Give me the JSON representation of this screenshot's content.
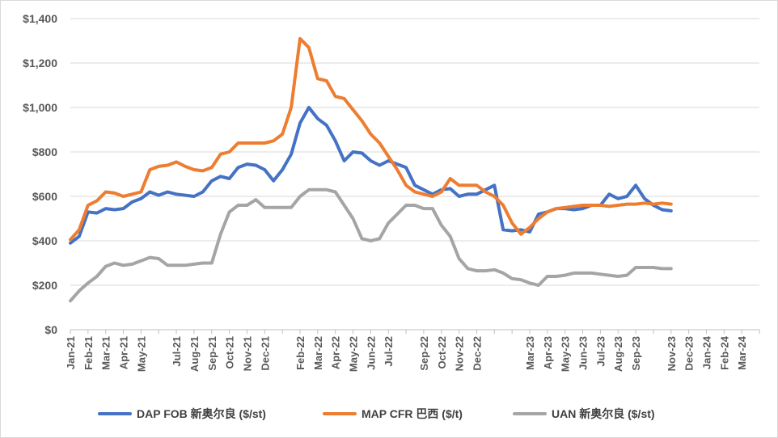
{
  "chart_data": {
    "type": "line",
    "title": "",
    "xlabel": "",
    "ylabel": "",
    "ylim": [
      0,
      1400
    ],
    "y_ticks": [
      0,
      200,
      400,
      600,
      800,
      1000,
      1200,
      1400
    ],
    "y_tick_labels": [
      "$0",
      "$200",
      "$400",
      "$600",
      "$800",
      "$1,000",
      "$1,200",
      "$1,400"
    ],
    "x_categories": [
      "Jan-21",
      "Feb-21",
      "Mar-21",
      "Apr-21",
      "May-21",
      "Jul-21",
      "Aug-21",
      "Sep-21",
      "Oct-21",
      "Nov-21",
      "Dec-21",
      "Feb-22",
      "Mar-22",
      "Apr-22",
      "May-22",
      "Jun-22",
      "Jul-22",
      "Sep-22",
      "Oct-22",
      "Nov-22",
      "Dec-22",
      "Mar-23",
      "Apr-23",
      "May-23",
      "Jun-23",
      "Jul-23",
      "Aug-23",
      "Sep-23",
      "Nov-23",
      "Dec-23",
      "Jan-24",
      "Feb-24",
      "Mar-24"
    ],
    "x_dates": [
      "2021-01",
      "2021-02",
      "2021-03",
      "2021-04",
      "2021-05",
      "2021-07",
      "2021-08",
      "2021-09",
      "2021-10",
      "2021-11",
      "2021-12",
      "2022-02",
      "2022-03",
      "2022-04",
      "2022-05",
      "2022-06",
      "2022-07",
      "2022-09",
      "2022-10",
      "2022-11",
      "2022-12",
      "2023-03",
      "2023-04",
      "2023-05",
      "2023-06",
      "2023-07",
      "2023-08",
      "2023-09",
      "2023-11",
      "2023-12",
      "2024-01",
      "2024-02",
      "2024-03"
    ],
    "x_range": [
      "2021-01",
      "2024-04"
    ],
    "grid": true,
    "legend_position": "bottom",
    "series": [
      {
        "name": "DAP FOB 新奥尔良 ($/st)",
        "color": "#4472C4",
        "points": [
          [
            "2021-01",
            390
          ],
          [
            "2021-01.5",
            420
          ],
          [
            "2021-02",
            530
          ],
          [
            "2021-02.5",
            525
          ],
          [
            "2021-03",
            545
          ],
          [
            "2021-03.5",
            540
          ],
          [
            "2021-04",
            545
          ],
          [
            "2021-04.5",
            575
          ],
          [
            "2021-05",
            590
          ],
          [
            "2021-05.5",
            620
          ],
          [
            "2021-06",
            605
          ],
          [
            "2021-06.5",
            620
          ],
          [
            "2021-07",
            610
          ],
          [
            "2021-07.5",
            605
          ],
          [
            "2021-08",
            600
          ],
          [
            "2021-08.5",
            620
          ],
          [
            "2021-09",
            670
          ],
          [
            "2021-09.5",
            690
          ],
          [
            "2021-10",
            680
          ],
          [
            "2021-10.5",
            730
          ],
          [
            "2021-11",
            745
          ],
          [
            "2021-11.5",
            740
          ],
          [
            "2021-12",
            720
          ],
          [
            "2021-12.5",
            670
          ],
          [
            "2022-01",
            720
          ],
          [
            "2022-01.5",
            790
          ],
          [
            "2022-02",
            930
          ],
          [
            "2022-02.5",
            1000
          ],
          [
            "2022-03",
            950
          ],
          [
            "2022-03.5",
            920
          ],
          [
            "2022-04",
            850
          ],
          [
            "2022-04.5",
            760
          ],
          [
            "2022-05",
            800
          ],
          [
            "2022-05.5",
            795
          ],
          [
            "2022-06",
            760
          ],
          [
            "2022-06.5",
            740
          ],
          [
            "2022-07",
            760
          ],
          [
            "2022-07.5",
            745
          ],
          [
            "2022-08",
            730
          ],
          [
            "2022-08.5",
            650
          ],
          [
            "2022-09",
            630
          ],
          [
            "2022-09.5",
            610
          ],
          [
            "2022-10",
            630
          ],
          [
            "2022-10.5",
            635
          ],
          [
            "2022-11",
            600
          ],
          [
            "2022-11.5",
            610
          ],
          [
            "2022-12",
            610
          ],
          [
            "2022-12.5",
            630
          ],
          [
            "2023-01",
            650
          ],
          [
            "2023-01.5",
            450
          ],
          [
            "2023-02",
            445
          ],
          [
            "2023-02.5",
            450
          ],
          [
            "2023-03",
            440
          ],
          [
            "2023-03.5",
            520
          ],
          [
            "2023-04",
            530
          ],
          [
            "2023-04.5",
            545
          ],
          [
            "2023-05",
            545
          ],
          [
            "2023-05.5",
            540
          ],
          [
            "2023-06",
            545
          ],
          [
            "2023-06.5",
            560
          ],
          [
            "2023-07",
            560
          ],
          [
            "2023-07.5",
            610
          ],
          [
            "2023-08",
            590
          ],
          [
            "2023-08.5",
            600
          ],
          [
            "2023-09",
            650
          ],
          [
            "2023-09.5",
            590
          ],
          [
            "2023-10",
            560
          ],
          [
            "2023-10.5",
            540
          ],
          [
            "2023-11",
            535
          ]
        ]
      },
      {
        "name": "MAP CFR 巴西 ($/t)",
        "color": "#ED7D31",
        "points": [
          [
            "2021-01",
            405
          ],
          [
            "2021-01.5",
            450
          ],
          [
            "2021-02",
            560
          ],
          [
            "2021-02.5",
            580
          ],
          [
            "2021-03",
            620
          ],
          [
            "2021-03.5",
            615
          ],
          [
            "2021-04",
            600
          ],
          [
            "2021-04.5",
            610
          ],
          [
            "2021-05",
            620
          ],
          [
            "2021-05.5",
            720
          ],
          [
            "2021-06",
            735
          ],
          [
            "2021-06.5",
            740
          ],
          [
            "2021-07",
            755
          ],
          [
            "2021-07.5",
            735
          ],
          [
            "2021-08",
            720
          ],
          [
            "2021-08.5",
            715
          ],
          [
            "2021-09",
            730
          ],
          [
            "2021-09.5",
            790
          ],
          [
            "2021-10",
            800
          ],
          [
            "2021-10.5",
            840
          ],
          [
            "2021-11",
            840
          ],
          [
            "2021-11.5",
            840
          ],
          [
            "2021-12",
            840
          ],
          [
            "2021-12.5",
            850
          ],
          [
            "2022-01",
            880
          ],
          [
            "2022-01.5",
            1000
          ],
          [
            "2022-02",
            1310
          ],
          [
            "2022-02.5",
            1270
          ],
          [
            "2022-03",
            1130
          ],
          [
            "2022-03.5",
            1120
          ],
          [
            "2022-04",
            1050
          ],
          [
            "2022-04.5",
            1040
          ],
          [
            "2022-05",
            990
          ],
          [
            "2022-05.5",
            940
          ],
          [
            "2022-06",
            880
          ],
          [
            "2022-06.5",
            840
          ],
          [
            "2022-07",
            780
          ],
          [
            "2022-07.5",
            720
          ],
          [
            "2022-08",
            650
          ],
          [
            "2022-08.5",
            620
          ],
          [
            "2022-09",
            610
          ],
          [
            "2022-09.5",
            600
          ],
          [
            "2022-10",
            620
          ],
          [
            "2022-10.5",
            680
          ],
          [
            "2022-11",
            650
          ],
          [
            "2022-11.5",
            650
          ],
          [
            "2022-12",
            650
          ],
          [
            "2022-12.5",
            620
          ],
          [
            "2023-01",
            600
          ],
          [
            "2023-01.5",
            560
          ],
          [
            "2023-02",
            480
          ],
          [
            "2023-02.5",
            430
          ],
          [
            "2023-03",
            460
          ],
          [
            "2023-03.5",
            500
          ],
          [
            "2023-04",
            530
          ],
          [
            "2023-04.5",
            545
          ],
          [
            "2023-05",
            550
          ],
          [
            "2023-05.5",
            555
          ],
          [
            "2023-06",
            560
          ],
          [
            "2023-06.5",
            560
          ],
          [
            "2023-07",
            560
          ],
          [
            "2023-07.5",
            555
          ],
          [
            "2023-08",
            560
          ],
          [
            "2023-08.5",
            565
          ],
          [
            "2023-09",
            565
          ],
          [
            "2023-09.5",
            570
          ],
          [
            "2023-10",
            565
          ],
          [
            "2023-10.5",
            570
          ],
          [
            "2023-11",
            565
          ]
        ]
      },
      {
        "name": "UAN 新奥尔良 ($/st)",
        "color": "#A5A5A5",
        "points": [
          [
            "2021-01",
            130
          ],
          [
            "2021-01.5",
            175
          ],
          [
            "2021-02",
            210
          ],
          [
            "2021-02.5",
            240
          ],
          [
            "2021-03",
            285
          ],
          [
            "2021-03.5",
            300
          ],
          [
            "2021-04",
            290
          ],
          [
            "2021-04.5",
            295
          ],
          [
            "2021-05",
            310
          ],
          [
            "2021-05.5",
            325
          ],
          [
            "2021-06",
            320
          ],
          [
            "2021-06.5",
            290
          ],
          [
            "2021-07",
            290
          ],
          [
            "2021-07.5",
            290
          ],
          [
            "2021-08",
            295
          ],
          [
            "2021-08.5",
            300
          ],
          [
            "2021-09",
            300
          ],
          [
            "2021-09.5",
            430
          ],
          [
            "2021-10",
            530
          ],
          [
            "2021-10.5",
            560
          ],
          [
            "2021-11",
            560
          ],
          [
            "2021-11.5",
            585
          ],
          [
            "2021-12",
            550
          ],
          [
            "2021-12.5",
            550
          ],
          [
            "2022-01",
            550
          ],
          [
            "2022-01.5",
            550
          ],
          [
            "2022-02",
            600
          ],
          [
            "2022-02.5",
            630
          ],
          [
            "2022-03",
            630
          ],
          [
            "2022-03.5",
            630
          ],
          [
            "2022-04",
            620
          ],
          [
            "2022-04.5",
            560
          ],
          [
            "2022-05",
            500
          ],
          [
            "2022-05.5",
            410
          ],
          [
            "2022-06",
            400
          ],
          [
            "2022-06.5",
            410
          ],
          [
            "2022-07",
            480
          ],
          [
            "2022-07.5",
            520
          ],
          [
            "2022-08",
            560
          ],
          [
            "2022-08.5",
            560
          ],
          [
            "2022-09",
            545
          ],
          [
            "2022-09.5",
            545
          ],
          [
            "2022-10",
            470
          ],
          [
            "2022-10.5",
            420
          ],
          [
            "2022-11",
            320
          ],
          [
            "2022-11.5",
            275
          ],
          [
            "2022-12",
            265
          ],
          [
            "2022-12.5",
            265
          ],
          [
            "2023-01",
            270
          ],
          [
            "2023-01.5",
            255
          ],
          [
            "2023-02",
            230
          ],
          [
            "2023-02.5",
            225
          ],
          [
            "2023-03",
            210
          ],
          [
            "2023-03.5",
            200
          ],
          [
            "2023-04",
            240
          ],
          [
            "2023-04.5",
            240
          ],
          [
            "2023-05",
            245
          ],
          [
            "2023-05.5",
            255
          ],
          [
            "2023-06",
            255
          ],
          [
            "2023-06.5",
            255
          ],
          [
            "2023-07",
            250
          ],
          [
            "2023-07.5",
            245
          ],
          [
            "2023-08",
            240
          ],
          [
            "2023-08.5",
            245
          ],
          [
            "2023-09",
            280
          ],
          [
            "2023-09.5",
            280
          ],
          [
            "2023-10",
            280
          ],
          [
            "2023-10.5",
            275
          ],
          [
            "2023-11",
            275
          ]
        ]
      }
    ]
  }
}
